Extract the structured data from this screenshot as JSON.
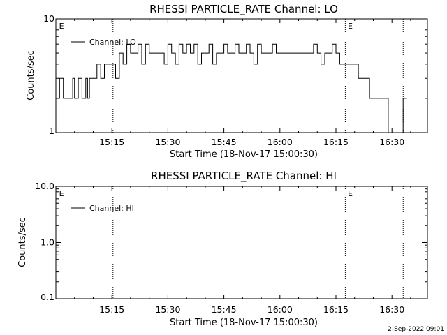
{
  "chart_data": [
    {
      "type": "line",
      "title": "RHESSI PARTICLE_RATE Channel: LO",
      "xlabel": "Start Time (18-Nov-17 15:00:30)",
      "ylabel": "Counts/sec",
      "yscale": "log",
      "xlim_minutes": [
        0,
        99.5
      ],
      "x_ticks": [
        {
          "minute": 15,
          "label": "15:15"
        },
        {
          "minute": 30,
          "label": "15:30"
        },
        {
          "minute": 45,
          "label": "15:45"
        },
        {
          "minute": 60,
          "label": "16:00"
        },
        {
          "minute": 75,
          "label": "16:15"
        },
        {
          "minute": 90,
          "label": "16:30"
        }
      ],
      "ylim": [
        1,
        10
      ],
      "y_ticks": [
        {
          "value": 1,
          "label": "1"
        },
        {
          "value": 10,
          "label": "10"
        }
      ],
      "vlines_minutes": [
        15.3,
        77.5,
        93.0
      ],
      "vline_style": "dotted",
      "event_marks": [
        {
          "minute": 0.5,
          "label": "E"
        },
        {
          "minute": 77.8,
          "label": "E"
        }
      ],
      "legend": {
        "placement": "top-left",
        "entries": [
          "Channel: LO"
        ]
      },
      "series": [
        {
          "name": "Channel: LO",
          "style": "histogram-step",
          "x": [
            0,
            1,
            2,
            3,
            4,
            4.5,
            5,
            6,
            7,
            8,
            8.5,
            9,
            10,
            11,
            12,
            13,
            14,
            15,
            16,
            17,
            18,
            19,
            20,
            21,
            22,
            23,
            24,
            25,
            26,
            27,
            28,
            29,
            30,
            31,
            32,
            33,
            34,
            35,
            36,
            37,
            38,
            39,
            40,
            41,
            42,
            43,
            44,
            45,
            46,
            47,
            48,
            49,
            50,
            51,
            52,
            53,
            54,
            55,
            56,
            57,
            58,
            59,
            60,
            61,
            62,
            63,
            64,
            65,
            66,
            67,
            68,
            69,
            70,
            71,
            72,
            73,
            74,
            75,
            76,
            77,
            78,
            79,
            80,
            81,
            82,
            83,
            84,
            85,
            86,
            87,
            88,
            89,
            90,
            91,
            92,
            93
          ],
          "values": [
            2,
            3,
            2,
            2,
            2,
            3,
            2,
            3,
            2,
            3,
            2,
            3,
            3,
            4,
            3,
            4,
            4,
            4,
            3,
            5,
            4,
            6,
            5,
            5,
            6,
            4,
            6,
            5,
            5,
            5,
            5,
            4,
            6,
            5,
            4,
            6,
            5,
            6,
            5,
            6,
            4,
            5,
            5,
            6,
            4,
            5,
            5,
            6,
            5,
            5,
            6,
            5,
            5,
            6,
            5,
            4,
            6,
            5,
            5,
            5,
            6,
            5,
            5,
            5,
            5,
            5,
            5,
            5,
            5,
            5,
            5,
            6,
            5,
            4,
            5,
            5,
            6,
            5,
            4,
            4,
            4,
            4,
            4,
            3,
            3,
            3,
            2,
            2,
            2,
            2,
            2,
            1,
            1,
            1,
            1,
            2
          ]
        }
      ]
    },
    {
      "type": "line",
      "title": "RHESSI PARTICLE_RATE Channel: HI",
      "xlabel": "Start Time (18-Nov-17 15:00:30)",
      "ylabel": "Counts/sec",
      "yscale": "log",
      "xlim_minutes": [
        0,
        99.5
      ],
      "x_ticks": [
        {
          "minute": 15,
          "label": "15:15"
        },
        {
          "minute": 30,
          "label": "15:30"
        },
        {
          "minute": 45,
          "label": "15:45"
        },
        {
          "minute": 60,
          "label": "16:00"
        },
        {
          "minute": 75,
          "label": "16:15"
        },
        {
          "minute": 90,
          "label": "16:30"
        }
      ],
      "ylim": [
        0.1,
        10
      ],
      "y_ticks": [
        {
          "value": 10,
          "label": "10.0"
        },
        {
          "value": 1,
          "label": "1.0"
        },
        {
          "value": 0.1,
          "label": "0.1"
        }
      ],
      "vlines_minutes": [
        15.3,
        77.5,
        93.0
      ],
      "vline_style": "dotted",
      "event_marks": [
        {
          "minute": 0.5,
          "label": "E"
        },
        {
          "minute": 77.8,
          "label": "E"
        }
      ],
      "legend": {
        "placement": "top-left",
        "entries": [
          "Channel: HI"
        ]
      },
      "series": [
        {
          "name": "Channel: HI",
          "style": "histogram-step",
          "x": [],
          "values": []
        }
      ]
    }
  ],
  "footer": {
    "date_stamp": "2-Sep-2022 09:01"
  },
  "colors": {
    "line": "#000000",
    "background": "#ffffff"
  }
}
